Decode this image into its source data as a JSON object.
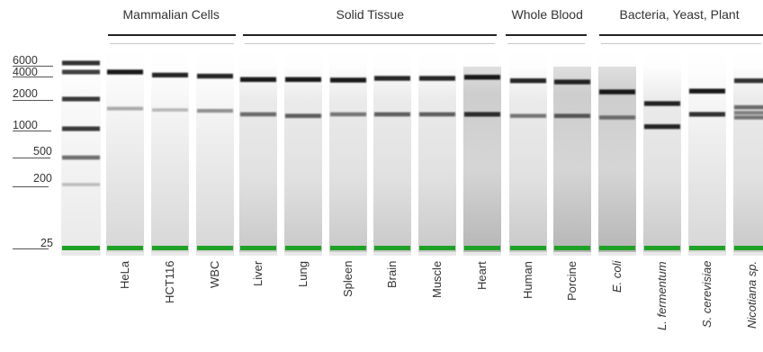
{
  "groups": [
    {
      "title": "Mammalian Cells"
    },
    {
      "title": "Solid Tissue"
    },
    {
      "title": "Whole Blood"
    },
    {
      "title": "Bacteria, Yeast, Plant"
    }
  ],
  "ladder": {
    "labels": [
      "6000",
      "4000",
      "2000",
      "1000",
      "500",
      "200",
      "25"
    ],
    "bands": [
      {
        "label": "6000",
        "intensity": 0.85
      },
      {
        "label": "4000",
        "intensity": 0.8
      },
      {
        "label": "2000",
        "intensity": 0.82
      },
      {
        "label": "1000",
        "intensity": 0.82
      },
      {
        "label": "500",
        "intensity": 0.6
      },
      {
        "label": "200",
        "intensity": 0.22
      },
      {
        "label": "25",
        "intensity": 1.0,
        "marker": true
      }
    ]
  },
  "lanes": [
    {
      "label": "HeLa",
      "italic": false,
      "bands": [
        {
          "size": 4000,
          "intensity": 0.95
        },
        {
          "size": 1600,
          "intensity": 0.35
        }
      ]
    },
    {
      "label": "HCT116",
      "italic": false,
      "bands": [
        {
          "size": 3700,
          "intensity": 0.9
        },
        {
          "size": 1550,
          "intensity": 0.25
        }
      ]
    },
    {
      "label": "WBC",
      "italic": false,
      "bands": [
        {
          "size": 3600,
          "intensity": 0.9
        },
        {
          "size": 1520,
          "intensity": 0.45
        }
      ]
    },
    {
      "label": "Liver",
      "italic": false,
      "bands": [
        {
          "size": 3300,
          "intensity": 0.95
        },
        {
          "size": 1400,
          "intensity": 0.6
        }
      ]
    },
    {
      "label": "Lung",
      "italic": false,
      "bands": [
        {
          "size": 3300,
          "intensity": 0.95
        },
        {
          "size": 1350,
          "intensity": 0.65
        }
      ]
    },
    {
      "label": "Spleen",
      "italic": false,
      "bands": [
        {
          "size": 3250,
          "intensity": 0.95
        },
        {
          "size": 1400,
          "intensity": 0.55
        }
      ]
    },
    {
      "label": "Brain",
      "italic": false,
      "bands": [
        {
          "size": 3400,
          "intensity": 0.9
        },
        {
          "size": 1400,
          "intensity": 0.65
        }
      ]
    },
    {
      "label": "Muscle",
      "italic": false,
      "bands": [
        {
          "size": 3400,
          "intensity": 0.9
        },
        {
          "size": 1400,
          "intensity": 0.65
        }
      ]
    },
    {
      "label": "Heart",
      "italic": false,
      "bands": [
        {
          "size": 3500,
          "intensity": 0.95
        },
        {
          "size": 1400,
          "intensity": 0.85
        }
      ]
    },
    {
      "label": "Human",
      "italic": false,
      "bands": [
        {
          "size": 3200,
          "intensity": 0.9
        },
        {
          "size": 1350,
          "intensity": 0.55
        }
      ]
    },
    {
      "label": "Porcine",
      "italic": false,
      "bands": [
        {
          "size": 3100,
          "intensity": 0.9
        },
        {
          "size": 1350,
          "intensity": 0.65
        }
      ]
    },
    {
      "label": "E. coli",
      "italic": true,
      "bands": [
        {
          "size": 2400,
          "intensity": 0.95
        },
        {
          "size": 1300,
          "intensity": 0.55
        }
      ]
    },
    {
      "label": "L. fermentum",
      "italic": true,
      "bands": [
        {
          "size": 1800,
          "intensity": 0.9
        },
        {
          "size": 1050,
          "intensity": 0.9
        }
      ]
    },
    {
      "label": "S. cerevisiae",
      "italic": true,
      "bands": [
        {
          "size": 2450,
          "intensity": 0.95
        },
        {
          "size": 1400,
          "intensity": 0.85
        }
      ]
    },
    {
      "label": "Nicotiana sp.",
      "italic": true,
      "bands": [
        {
          "size": 3200,
          "intensity": 0.85
        },
        {
          "size": 1650,
          "intensity": 0.6
        },
        {
          "size": 1450,
          "intensity": 0.5
        },
        {
          "size": 1300,
          "intensity": 0.55
        }
      ]
    }
  ],
  "colors": {
    "marker": "#1fa127",
    "band": "#111111",
    "lane_background": "#fbfbfb",
    "text": "#333333"
  }
}
